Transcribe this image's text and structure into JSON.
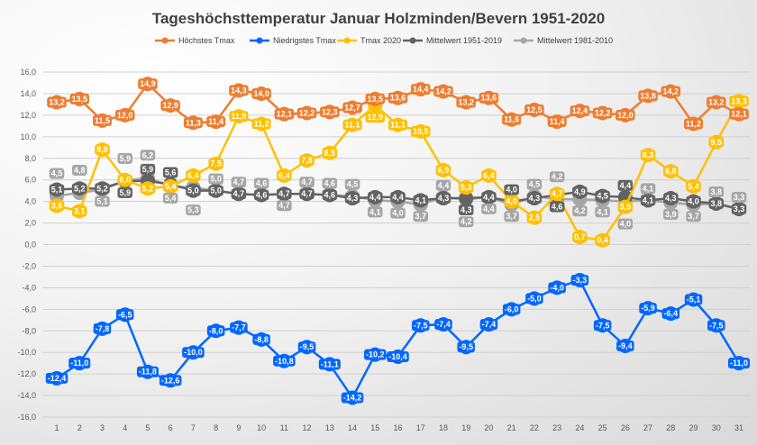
{
  "chart_data": {
    "type": "line",
    "title": "Tageshöchsttemperatur Januar Holzminden/Bevern 1951-2020",
    "xlabel": "",
    "ylabel": "",
    "x": [
      1,
      2,
      3,
      4,
      5,
      6,
      7,
      8,
      9,
      10,
      11,
      12,
      13,
      14,
      15,
      16,
      17,
      18,
      19,
      20,
      21,
      22,
      23,
      24,
      25,
      26,
      27,
      28,
      29,
      30,
      31
    ],
    "ylim": [
      -16,
      16
    ],
    "yticks": [
      "16,0",
      "14,0",
      "12,0",
      "10,0",
      "8,0",
      "6,0",
      "4,0",
      "2,0",
      "0,0",
      "-2,0",
      "-4,0",
      "-6,0",
      "-8,0",
      "-10,0",
      "-12,0",
      "-14,0",
      "-16,0"
    ],
    "grid": true,
    "legend_position": "top",
    "series": [
      {
        "name": "Höchstes Tmax",
        "color": "#ed7d31",
        "values": [
          13.2,
          13.5,
          11.5,
          12.0,
          14.9,
          12.9,
          11.3,
          11.4,
          14.3,
          14.0,
          12.1,
          12.2,
          12.3,
          12.7,
          13.5,
          13.6,
          14.4,
          14.2,
          13.2,
          13.6,
          11.6,
          12.5,
          11.4,
          12.4,
          12.2,
          12.0,
          13.8,
          14.2,
          11.2,
          13.2,
          12.1
        ]
      },
      {
        "name": "Niedrigstes Tmax",
        "color": "#0066ff",
        "values": [
          -12.4,
          -11.0,
          -7.8,
          -6.5,
          -11.8,
          -12.6,
          -10.0,
          -8.0,
          -7.7,
          -8.8,
          -10.8,
          -9.5,
          -11.1,
          -14.2,
          -10.2,
          -10.4,
          -7.5,
          -7.4,
          -9.5,
          -7.4,
          -6.0,
          -5.0,
          -4.0,
          -3.3,
          -7.5,
          -9.4,
          -5.9,
          -6.4,
          -5.1,
          -7.5,
          -11.0
        ]
      },
      {
        "name": "Tmax 2020",
        "color": "#ffc000",
        "values": [
          3.6,
          3.1,
          8.8,
          6.0,
          5.2,
          5.4,
          6.4,
          7.5,
          11.9,
          11.2,
          6.4,
          7.8,
          8.5,
          11.1,
          12.9,
          11.1,
          10.5,
          6.9,
          5.3,
          6.4,
          4.0,
          2.5,
          4.7,
          0.7,
          0.4,
          3.5,
          8.3,
          6.8,
          5.4,
          9.5,
          13.3
        ]
      },
      {
        "name": "Mittelwert 1951-2019",
        "color": "#636363",
        "values": [
          5.1,
          5.2,
          5.2,
          5.9,
          5.9,
          5.6,
          5.0,
          5.0,
          4.7,
          4.6,
          4.7,
          4.7,
          4.6,
          4.3,
          4.4,
          4.4,
          4.1,
          4.3,
          4.3,
          4.4,
          4.0,
          4.3,
          4.6,
          4.9,
          4.5,
          4.4,
          4.1,
          4.3,
          4.0,
          3.8,
          3.3
        ]
      },
      {
        "name": "Mittelwert 1981-2010",
        "color": "#a6a6a6",
        "values": [
          4.5,
          4.8,
          5.1,
          5.9,
          6.2,
          5.4,
          5.3,
          5.0,
          4.7,
          4.6,
          4.7,
          4.7,
          4.6,
          4.5,
          4.1,
          4.0,
          3.7,
          4.4,
          4.2,
          4.4,
          3.7,
          4.5,
          4.2,
          4.2,
          4.1,
          4.0,
          4.1,
          3.9,
          3.7,
          3.8,
          3.3
        ]
      }
    ]
  }
}
